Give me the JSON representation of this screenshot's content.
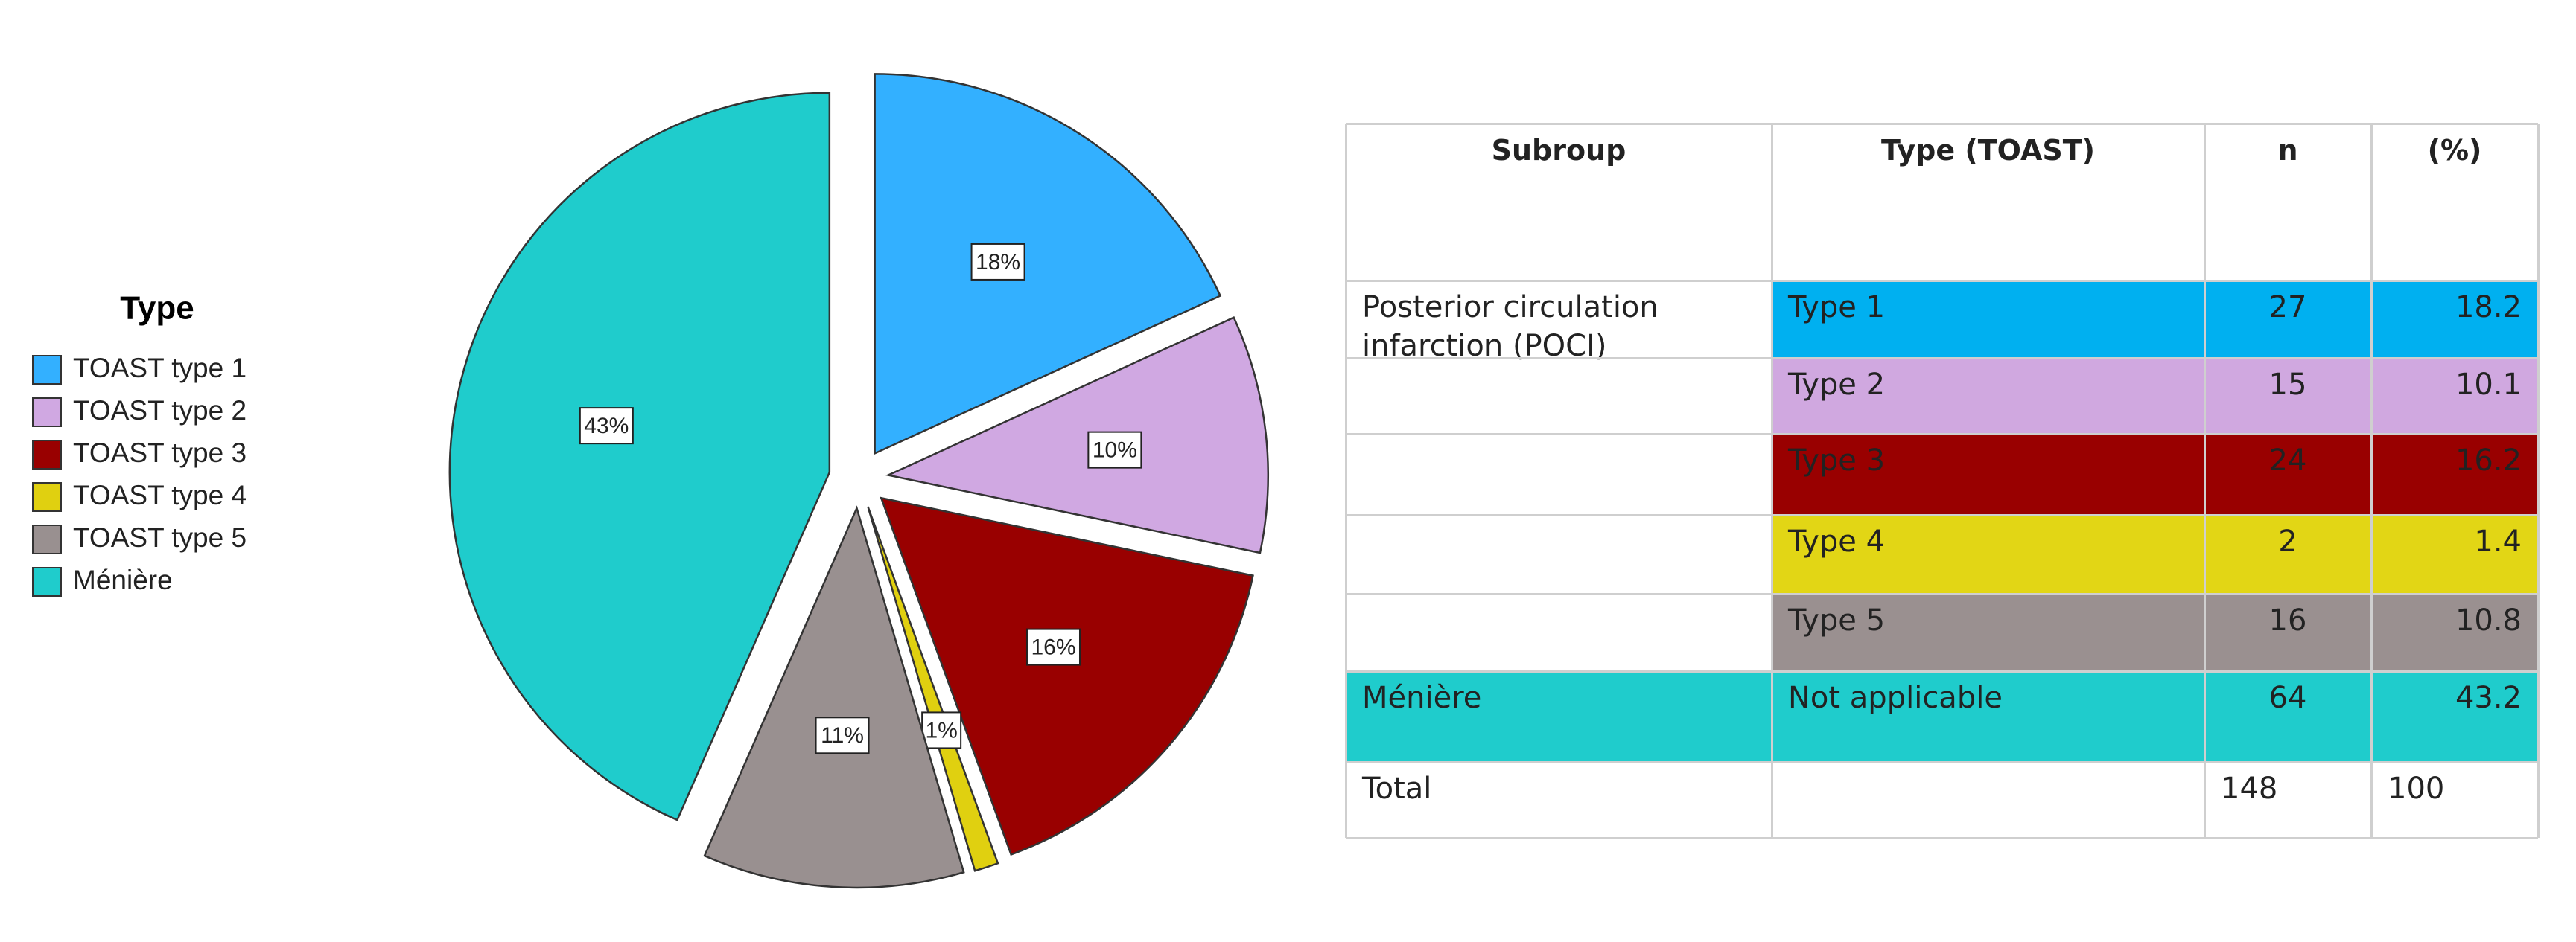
{
  "chart_data": {
    "type": "pie",
    "legend_title": "Type",
    "categories": [
      "TOAST type 1",
      "TOAST type 2",
      "TOAST type 3",
      "TOAST type 4",
      "TOAST type 5",
      "Ménière"
    ],
    "values": [
      18,
      10,
      16,
      1,
      11,
      43
    ],
    "value_labels": [
      "18%",
      "10%",
      "16%",
      "1%",
      "11%",
      "43%"
    ],
    "colors": [
      "#33b0ff",
      "#d0a8e2",
      "#990000",
      "#e0d010",
      "#999090",
      "#1fcccc"
    ],
    "legend": "left"
  },
  "table": {
    "header": [
      "Subroup",
      "Type (TOAST)",
      "n",
      "(%)"
    ],
    "group": "Posterior circulation infarction (POCI)",
    "rows": [
      {
        "type": "Type 1",
        "n": 27,
        "pct": 18.2,
        "color": "#00b0f0"
      },
      {
        "type": "Type 2",
        "n": 15,
        "pct": 10.1,
        "color": "#d0a8e0"
      },
      {
        "type": "Type 3",
        "n": 24,
        "pct": 16.2,
        "color": "#990000"
      },
      {
        "type": "Type 4",
        "n": 2,
        "pct": 1.4,
        "color": "#e2d615"
      },
      {
        "type": "Type 5",
        "n": 16,
        "pct": 10.8,
        "color": "#9a9090"
      }
    ],
    "meniere": {
      "group": "Ménière",
      "type": "Not applicable",
      "n": 64,
      "pct": 43.2,
      "color": "#1fcccc"
    },
    "total": {
      "label": "Total",
      "n": 148,
      "pct": 100
    }
  }
}
